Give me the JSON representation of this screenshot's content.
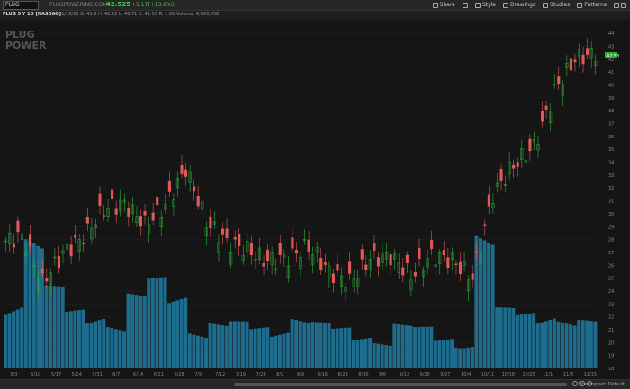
{
  "toolbar": {
    "symbol": "PLUG",
    "company": "PLUGPOWERINC.COM",
    "last_price": "42.525",
    "change": "+5.17(+13.8%)",
    "share": "Share",
    "style": "Style",
    "drawings": "Drawings",
    "studies": "Studies",
    "patterns": "Patterns"
  },
  "info": {
    "study_label": "PLUG 5 Y 1D [NASDAQ]",
    "ohlc": "D: 11/16/21   O: 41.8   H: 42.22   L: 40.71   C: 42.53   R: 1.65   Volume: 4,603,858"
  },
  "chart": {
    "watermark_line1": "PLUG",
    "watermark_line2": "POWER",
    "price_tag": "42.53",
    "x_labels": [
      "5/3",
      "5/10",
      "5/17",
      "5/24",
      "5/31",
      "6/7",
      "6/14",
      "6/21",
      "6/28",
      "7/5",
      "7/12",
      "7/19",
      "7/26",
      "8/2",
      "8/9",
      "8/16",
      "8/23",
      "8/30",
      "9/6",
      "9/13",
      "9/20",
      "9/27",
      "10/4",
      "10/11",
      "10/18",
      "10/25",
      "11/1",
      "11/8",
      "11/15"
    ],
    "y_labels": [
      "44",
      "43",
      "42",
      "41",
      "40",
      "39",
      "38",
      "37",
      "36",
      "35",
      "34",
      "33",
      "32",
      "31",
      "30",
      "29",
      "28",
      "27",
      "26",
      "25",
      "24",
      "23",
      "22",
      "21",
      "20",
      "19",
      "18"
    ],
    "up_color": "#2fae3a",
    "down_color": "#e05a5a",
    "volume_color": "#1e6c8e"
  },
  "chart_data": {
    "type": "candlestick",
    "x": [
      "5/3",
      "5/10",
      "5/17",
      "5/24",
      "5/31",
      "6/7",
      "6/14",
      "6/21",
      "6/28",
      "7/5",
      "7/12",
      "7/19",
      "7/26",
      "8/2",
      "8/9",
      "8/16",
      "8/23",
      "8/30",
      "9/6",
      "9/13",
      "9/20",
      "9/27",
      "10/4",
      "10/11",
      "10/18",
      "10/25",
      "11/1",
      "11/8",
      "11/15"
    ],
    "close": [
      28.3,
      24.7,
      26.9,
      28.2,
      30.4,
      30.8,
      29.2,
      30.6,
      33.5,
      29.4,
      27.8,
      27.2,
      26.3,
      26.6,
      27.5,
      25.5,
      24.7,
      26.5,
      26.7,
      25.2,
      26.8,
      26.4,
      25.0,
      31.5,
      33.8,
      35.2,
      39.5,
      42.0,
      42.5
    ],
    "volume_relative": [
      0.35,
      0.55,
      0.3,
      0.22,
      0.24,
      0.2,
      0.28,
      0.33,
      0.3,
      0.2,
      0.18,
      0.17,
      0.16,
      0.19,
      0.22,
      0.17,
      0.15,
      0.14,
      0.13,
      0.17,
      0.15,
      0.12,
      0.13,
      0.55,
      0.22,
      0.21,
      0.25,
      0.22,
      0.18
    ],
    "ylim": [
      18,
      44.5
    ]
  },
  "bottom": {
    "drawing_set": "Drawing set: Default"
  }
}
